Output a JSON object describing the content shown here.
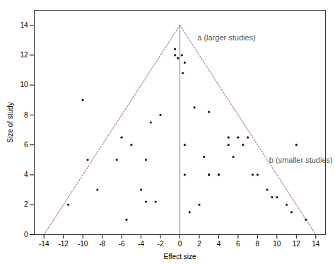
{
  "chart_data": {
    "type": "scatter",
    "xlabel": "Effect size",
    "ylabel": "Size of study",
    "xlim": [
      -15,
      15
    ],
    "ylim": [
      0,
      15
    ],
    "xticks": [
      -14,
      -12,
      -10,
      -8,
      -6,
      -4,
      -2,
      0,
      2,
      4,
      6,
      8,
      10,
      12,
      14
    ],
    "yticks": [
      0,
      2,
      4,
      6,
      8,
      10,
      12,
      14
    ],
    "grid": false,
    "x": [
      -0.5,
      -0.5,
      -0.2,
      0.2,
      0.5,
      0.3,
      -2.0,
      -3.0,
      -3.5,
      -5.0,
      -6.0,
      -6.5,
      -10.0,
      -8.5,
      -9.5,
      -11.5,
      -2.5,
      -4.0,
      -3.5,
      -5.5,
      0.5,
      0.5,
      1.5,
      3.0,
      2.5,
      3.0,
      4.0,
      5.0,
      1.0,
      2.0,
      3.0,
      4.0,
      5.0,
      6.0,
      6.5,
      5.5,
      7.0,
      7.5,
      8.0,
      9.0,
      9.5,
      10.0,
      11.0,
      11.5,
      12.0,
      13.0
    ],
    "y": [
      12.4,
      12.0,
      11.8,
      12.0,
      11.5,
      10.8,
      8.0,
      7.5,
      5.0,
      6.0,
      6.5,
      5.0,
      9.0,
      3.0,
      5.0,
      2.0,
      2.2,
      3.0,
      2.2,
      1.0,
      6.0,
      4.0,
      8.5,
      8.2,
      5.2,
      4.0,
      4.0,
      6.0,
      1.5,
      2.0,
      4.0,
      4.0,
      6.5,
      6.5,
      6.0,
      5.2,
      6.5,
      4.0,
      4.0,
      3.0,
      2.5,
      2.5,
      2.0,
      1.5,
      6.0,
      1.0
    ],
    "color": "#1a1a1a",
    "marker": "circle",
    "lines": [
      {
        "x": [
          0,
          -14
        ],
        "y": [
          14,
          0
        ],
        "color": "#b87cb0",
        "line_style": "dotted"
      },
      {
        "x": [
          0,
          14
        ],
        "y": [
          14,
          0
        ],
        "color": "#b87cb0",
        "line_style": "dotted"
      },
      {
        "x": [
          0,
          0
        ],
        "y": [
          0,
          14
        ],
        "color": "#7b8fc0",
        "line_style": "solid"
      }
    ],
    "annotations": [
      {
        "text": "a (larger studies)",
        "x": 1.8,
        "y": 13.0,
        "color": "#555555"
      },
      {
        "text": "b (smaller studies)",
        "x": 9.2,
        "y": 4.8,
        "color": "#555555"
      }
    ]
  }
}
